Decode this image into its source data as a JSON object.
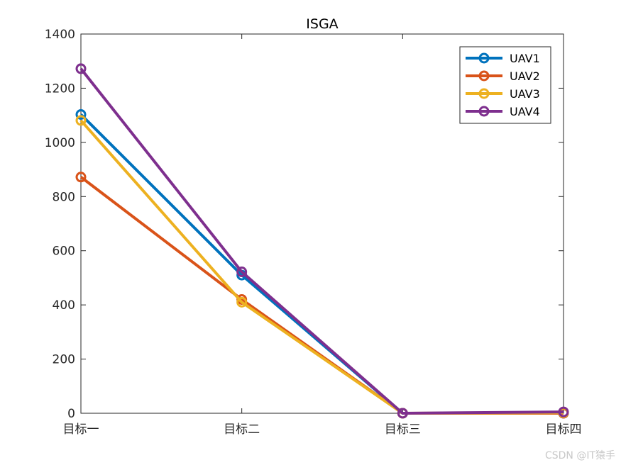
{
  "chart_data": {
    "type": "line",
    "title": "ISGA",
    "categories": [
      "目标一",
      "目标二",
      "目标三",
      "目标四"
    ],
    "ylim": [
      0,
      1400
    ],
    "yticks": [
      0,
      200,
      400,
      600,
      800,
      1000,
      1200,
      1400
    ],
    "xlabel": "",
    "ylabel": "",
    "legend_position": "top-right",
    "series": [
      {
        "name": "UAV1",
        "color": "#0072BD",
        "values": [
          1103,
          510,
          0,
          0
        ]
      },
      {
        "name": "UAV2",
        "color": "#D95319",
        "values": [
          872,
          420,
          0,
          0
        ]
      },
      {
        "name": "UAV3",
        "color": "#EDB120",
        "values": [
          1081,
          410,
          0,
          2
        ]
      },
      {
        "name": "UAV4",
        "color": "#7E2F8E",
        "values": [
          1272,
          522,
          0,
          5
        ]
      }
    ]
  },
  "watermark": "CSDN @IT猿手"
}
